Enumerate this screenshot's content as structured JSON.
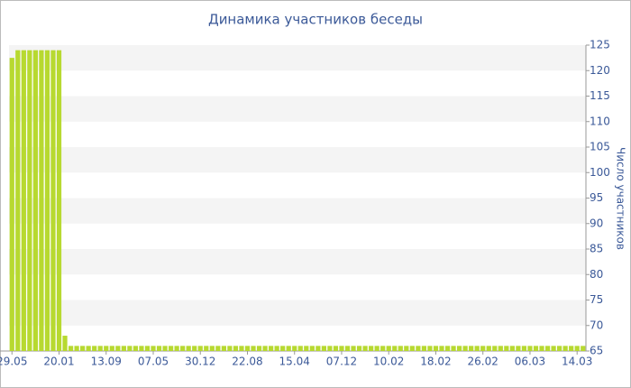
{
  "chart_data": {
    "type": "bar",
    "title": "Динамика участников беседы",
    "y_label": "Число участников",
    "categories": [
      "29.05",
      null,
      null,
      null,
      null,
      null,
      null,
      null,
      "20.01",
      null,
      null,
      null,
      null,
      null,
      null,
      null,
      "13.09",
      null,
      null,
      null,
      null,
      null,
      null,
      null,
      "07.05",
      null,
      null,
      null,
      null,
      null,
      null,
      null,
      "30.12",
      null,
      null,
      null,
      null,
      null,
      null,
      null,
      "22.08",
      null,
      null,
      null,
      null,
      null,
      null,
      null,
      "15.04",
      null,
      null,
      null,
      null,
      null,
      null,
      null,
      "07.12",
      null,
      null,
      null,
      null,
      null,
      null,
      null,
      "10.02",
      null,
      null,
      null,
      null,
      null,
      null,
      null,
      "18.02",
      null,
      null,
      null,
      null,
      null,
      null,
      null,
      "26.02",
      null,
      null,
      null,
      null,
      null,
      null,
      null,
      "06.03",
      null,
      null,
      null,
      null,
      null,
      null,
      null,
      "14.03",
      null
    ],
    "values": [
      122.5,
      124,
      124,
      124,
      124,
      124,
      124,
      124,
      124,
      68,
      66,
      66,
      66,
      66,
      66,
      66,
      66,
      66,
      66,
      66,
      66,
      66,
      66,
      66,
      66,
      66,
      66,
      66,
      66,
      66,
      66,
      66,
      66,
      66,
      66,
      66,
      66,
      66,
      66,
      66,
      66,
      66,
      66,
      66,
      66,
      66,
      66,
      66,
      66,
      66,
      66,
      66,
      66,
      66,
      66,
      66,
      66,
      66,
      66,
      66,
      66,
      66,
      66,
      66,
      66,
      66,
      66,
      66,
      66,
      66,
      66,
      66,
      66,
      66,
      66,
      66,
      66,
      66,
      66,
      66,
      66,
      66,
      66,
      66,
      66,
      66,
      66,
      66,
      66,
      66,
      66,
      66,
      66,
      66,
      66,
      66,
      66,
      66
    ],
    "color": "#b7d930",
    "ylim": [
      65,
      125
    ],
    "yticks": [
      65,
      70,
      75,
      80,
      85,
      90,
      95,
      100,
      105,
      110,
      115,
      120,
      125
    ],
    "grid": true
  }
}
